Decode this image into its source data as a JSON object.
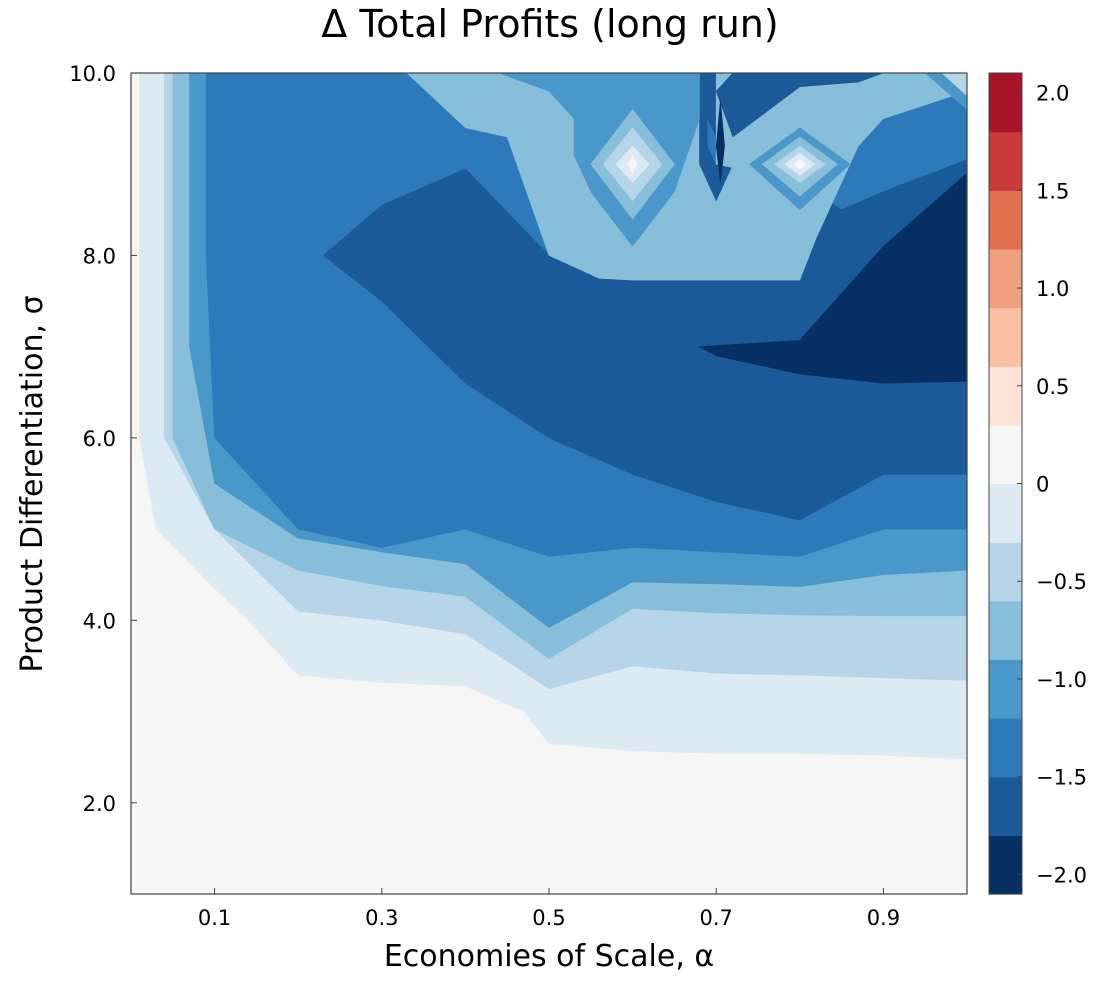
{
  "chart_data": {
    "type": "contour",
    "title": "Δ Total Profits (long run)",
    "xlabel": "Economies of Scale, α",
    "ylabel": "Product Differentiation, σ",
    "xlim": [
      0.0,
      1.0
    ],
    "ylim": [
      1.0,
      10.0
    ],
    "x_ticks": [
      {
        "value": 0.1,
        "label": "0.1"
      },
      {
        "value": 0.3,
        "label": "0.3"
      },
      {
        "value": 0.5,
        "label": "0.5"
      },
      {
        "value": 0.7,
        "label": "0.7"
      },
      {
        "value": 0.9,
        "label": "0.9"
      }
    ],
    "y_ticks": [
      {
        "value": 2.0,
        "label": "2.0"
      },
      {
        "value": 4.0,
        "label": "4.0"
      },
      {
        "value": 6.0,
        "label": "6.0"
      },
      {
        "value": 8.0,
        "label": "8.0"
      },
      {
        "value": 10.0,
        "label": "10.0"
      }
    ],
    "grid": false,
    "colorbar": {
      "range": [
        -2.1,
        2.1
      ],
      "levels": [
        -2.1,
        -1.8,
        -1.5,
        -1.2,
        -0.9,
        -0.6,
        -0.3,
        0.0,
        0.3,
        0.6,
        0.9,
        1.2,
        1.5,
        1.8,
        2.1
      ],
      "colors": [
        "#053061",
        "#1b5a99",
        "#2e79b9",
        "#4a98c9",
        "#87beda",
        "#b6d5e8",
        "#dcebf3",
        "#f6f6f6",
        "#fde3d5",
        "#f9c0a3",
        "#f1a07f",
        "#e0704f",
        "#c83b3a",
        "#a51429",
        "#67001f"
      ],
      "ticks": [
        {
          "value": 2.0,
          "label": "2.0"
        },
        {
          "value": 1.5,
          "label": "1.5"
        },
        {
          "value": 1.0,
          "label": "1.0"
        },
        {
          "value": 0.5,
          "label": "0.5"
        },
        {
          "value": 0.0,
          "label": "0"
        },
        {
          "value": -0.5,
          "label": "−0.5"
        },
        {
          "value": -1.0,
          "label": "−1.0"
        },
        {
          "value": -1.5,
          "label": "−1.5"
        },
        {
          "value": -2.0,
          "label": "−2.0"
        }
      ]
    },
    "regions": [
      {
        "level": 0,
        "points": [
          [
            0,
            1
          ],
          [
            1,
            1
          ],
          [
            1,
            10
          ],
          [
            0,
            10
          ]
        ]
      },
      {
        "level": -1,
        "points": [
          [
            0.01,
            10
          ],
          [
            0.01,
            6.0
          ],
          [
            0.03,
            5.0
          ],
          [
            0.1,
            4.35
          ],
          [
            0.14,
            4.0
          ],
          [
            0.2,
            3.4
          ],
          [
            0.3,
            3.32
          ],
          [
            0.4,
            3.28
          ],
          [
            0.47,
            3.0
          ],
          [
            0.5,
            2.65
          ],
          [
            0.6,
            2.57
          ],
          [
            0.7,
            2.54
          ],
          [
            0.8,
            2.54
          ],
          [
            0.9,
            2.52
          ],
          [
            1,
            2.48
          ],
          [
            1,
            10
          ]
        ]
      },
      {
        "level": -2,
        "points": [
          [
            0.04,
            10
          ],
          [
            0.04,
            6.0
          ],
          [
            0.07,
            5.5
          ],
          [
            0.1,
            5.0
          ],
          [
            0.2,
            4.1
          ],
          [
            0.3,
            4.0
          ],
          [
            0.4,
            3.85
          ],
          [
            0.5,
            3.25
          ],
          [
            0.6,
            3.5
          ],
          [
            0.7,
            3.42
          ],
          [
            0.8,
            3.4
          ],
          [
            0.9,
            3.37
          ],
          [
            1,
            3.34
          ],
          [
            1,
            10
          ]
        ]
      },
      {
        "level": -3,
        "points": [
          [
            0.05,
            10
          ],
          [
            0.05,
            6.0
          ],
          [
            0.1,
            5.0
          ],
          [
            0.2,
            4.55
          ],
          [
            0.3,
            4.38
          ],
          [
            0.4,
            4.26
          ],
          [
            0.5,
            3.58
          ],
          [
            0.6,
            4.13
          ],
          [
            0.7,
            4.08
          ],
          [
            0.8,
            4.06
          ],
          [
            0.9,
            4.05
          ],
          [
            1,
            4.05
          ],
          [
            1,
            10
          ]
        ]
      },
      {
        "level": -4,
        "points": [
          [
            0.07,
            10
          ],
          [
            0.07,
            7.0
          ],
          [
            0.1,
            5.5
          ],
          [
            0.2,
            4.9
          ],
          [
            0.3,
            4.75
          ],
          [
            0.4,
            4.62
          ],
          [
            0.5,
            3.92
          ],
          [
            0.6,
            4.42
          ],
          [
            0.7,
            4.4
          ],
          [
            0.8,
            4.37
          ],
          [
            0.9,
            4.5
          ],
          [
            1,
            4.55
          ],
          [
            1,
            10
          ]
        ]
      },
      {
        "level": -5,
        "points": [
          [
            0.09,
            10
          ],
          [
            0.09,
            8.0
          ],
          [
            0.1,
            6.0
          ],
          [
            0.2,
            5.0
          ],
          [
            0.3,
            4.8
          ],
          [
            0.4,
            5.0
          ],
          [
            0.5,
            4.7
          ],
          [
            0.6,
            4.8
          ],
          [
            0.7,
            4.75
          ],
          [
            0.8,
            4.7
          ],
          [
            0.9,
            5.0
          ],
          [
            1,
            5.0
          ],
          [
            1,
            10
          ]
        ]
      },
      {
        "level": -6,
        "points": [
          [
            0.23,
            8.0
          ],
          [
            0.3,
            8.55
          ],
          [
            0.4,
            8.95
          ],
          [
            0.5,
            8.0
          ],
          [
            0.56,
            8.3
          ],
          [
            0.6,
            8.35
          ],
          [
            0.65,
            8.5
          ],
          [
            0.7,
            7.9
          ],
          [
            0.75,
            8.3
          ],
          [
            0.8,
            8.8
          ],
          [
            0.85,
            8.5
          ],
          [
            0.9,
            8.7
          ],
          [
            1,
            9.05
          ],
          [
            1,
            5.6
          ],
          [
            0.9,
            5.6
          ],
          [
            0.8,
            5.1
          ],
          [
            0.7,
            5.3
          ],
          [
            0.6,
            5.6
          ],
          [
            0.5,
            6.0
          ],
          [
            0.4,
            6.6
          ],
          [
            0.3,
            7.5
          ]
        ]
      },
      {
        "level": -7,
        "points": [
          [
            0.68,
            7.0
          ],
          [
            0.8,
            7.07
          ],
          [
            0.9,
            8.1
          ],
          [
            1,
            8.9
          ],
          [
            1,
            6.62
          ],
          [
            0.9,
            6.6
          ],
          [
            0.8,
            6.7
          ],
          [
            0.7,
            6.9
          ]
        ]
      },
      {
        "level": -3,
        "points": [
          [
            0.33,
            10
          ],
          [
            0.4,
            9.4
          ],
          [
            0.45,
            9.3
          ],
          [
            0.5,
            8.0
          ],
          [
            0.56,
            7.75
          ],
          [
            0.6,
            7.73
          ],
          [
            0.7,
            7.73
          ],
          [
            0.8,
            7.73
          ],
          [
            0.82,
            8.2
          ],
          [
            0.87,
            9.2
          ],
          [
            0.9,
            9.5
          ],
          [
            1,
            9.8
          ],
          [
            1,
            10
          ],
          [
            0.87,
            10
          ],
          [
            0.84,
            9.9
          ],
          [
            0.8,
            9.9
          ],
          [
            0.7,
            10
          ],
          [
            0.68,
            10
          ],
          [
            0.68,
            9.0
          ],
          [
            0.7,
            8.2
          ],
          [
            0.72,
            9.0
          ],
          [
            0.72,
            10
          ]
        ]
      },
      {
        "level": -6,
        "points": [
          [
            0.68,
            10
          ],
          [
            0.68,
            9.0
          ],
          [
            0.7,
            8.6
          ],
          [
            0.72,
            9.0
          ],
          [
            0.72,
            10
          ]
        ]
      },
      {
        "level": -5,
        "points": [
          [
            0.69,
            10
          ],
          [
            0.69,
            9.2
          ],
          [
            0.7,
            9.0
          ],
          [
            0.71,
            9.2
          ],
          [
            0.71,
            10
          ]
        ]
      },
      {
        "level": -6,
        "points": [
          [
            0.69,
            10
          ],
          [
            0.69,
            9.5
          ],
          [
            0.7,
            9.3
          ],
          [
            0.71,
            9.5
          ],
          [
            0.71,
            10
          ]
        ]
      },
      {
        "level": -3,
        "points": [
          [
            0.7,
            10
          ],
          [
            0.7,
            9.0
          ],
          [
            0.755,
            8.9
          ],
          [
            0.8,
            9.0
          ],
          [
            0.82,
            9.5
          ],
          [
            0.86,
            9.9
          ],
          [
            0.84,
            10
          ]
        ]
      },
      {
        "level": -6,
        "points": [
          [
            0.72,
            10
          ],
          [
            0.7,
            9.8
          ],
          [
            0.72,
            9.3
          ],
          [
            0.8,
            9.85
          ],
          [
            0.87,
            9.9
          ],
          [
            0.9,
            10
          ]
        ]
      },
      {
        "level": -7,
        "points": [
          [
            0.7,
            9.2
          ],
          [
            0.705,
            9.7
          ],
          [
            0.71,
            9.2
          ],
          [
            0.705,
            8.8
          ]
        ]
      },
      {
        "level": -4,
        "points": [
          [
            0.44,
            10
          ],
          [
            0.5,
            9.8
          ],
          [
            0.53,
            9.5
          ],
          [
            0.53,
            9.1
          ],
          [
            0.55,
            8.7
          ],
          [
            0.6,
            8.1
          ],
          [
            0.65,
            8.7
          ],
          [
            0.68,
            9.5
          ],
          [
            0.68,
            10
          ]
        ]
      },
      {
        "level": -3,
        "points": [
          [
            0.6,
            9.6
          ],
          [
            0.65,
            9.0
          ],
          [
            0.6,
            8.4
          ],
          [
            0.55,
            9.0
          ]
        ]
      },
      {
        "level": -2,
        "points": [
          [
            0.6,
            9.4
          ],
          [
            0.635,
            9.0
          ],
          [
            0.6,
            8.6
          ],
          [
            0.565,
            9.0
          ]
        ]
      },
      {
        "level": -1,
        "points": [
          [
            0.6,
            9.2
          ],
          [
            0.62,
            9.0
          ],
          [
            0.6,
            8.8
          ],
          [
            0.58,
            9.0
          ]
        ]
      },
      {
        "level": 0,
        "points": [
          [
            0.6,
            9.1
          ],
          [
            0.605,
            9.0
          ],
          [
            0.6,
            8.9
          ],
          [
            0.595,
            9.0
          ]
        ]
      },
      {
        "level": -4,
        "points": [
          [
            0.8,
            9.4
          ],
          [
            0.86,
            9.0
          ],
          [
            0.8,
            8.5
          ],
          [
            0.74,
            9.0
          ]
        ]
      },
      {
        "level": -3,
        "points": [
          [
            0.8,
            9.3
          ],
          [
            0.845,
            9.0
          ],
          [
            0.8,
            8.65
          ],
          [
            0.755,
            9.0
          ]
        ]
      },
      {
        "level": -2,
        "points": [
          [
            0.8,
            9.2
          ],
          [
            0.83,
            9.0
          ],
          [
            0.8,
            8.8
          ],
          [
            0.77,
            9.0
          ]
        ]
      },
      {
        "level": -1,
        "points": [
          [
            0.8,
            9.12
          ],
          [
            0.818,
            9.0
          ],
          [
            0.8,
            8.88
          ],
          [
            0.782,
            9.0
          ]
        ]
      },
      {
        "level": 0,
        "points": [
          [
            0.8,
            9.05
          ],
          [
            0.808,
            9.0
          ],
          [
            0.8,
            8.95
          ],
          [
            0.792,
            9.0
          ]
        ]
      },
      {
        "level": -4,
        "points": [
          [
            0.95,
            10
          ],
          [
            1,
            9.6
          ],
          [
            1,
            10
          ]
        ]
      },
      {
        "level": -2,
        "points": [
          [
            0.97,
            10
          ],
          [
            1,
            9.75
          ],
          [
            1,
            10
          ]
        ]
      }
    ]
  }
}
